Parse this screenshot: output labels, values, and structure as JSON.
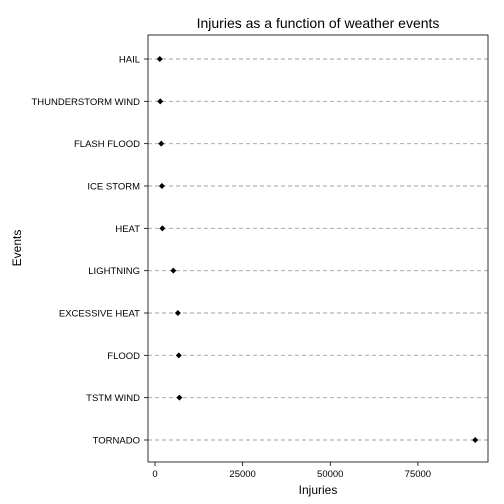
{
  "chart_data": {
    "type": "scatter",
    "title": "Injuries as a function of weather events",
    "xlabel": "Injuries",
    "ylabel": "Events",
    "xlim": [
      -2000,
      95000
    ],
    "x_ticks": [
      0,
      25000,
      50000,
      75000
    ],
    "x_tick_labels": [
      "0",
      "25000",
      "50000",
      "75000"
    ],
    "categories": [
      "HAIL",
      "THUNDERSTORM WIND",
      "FLASH FLOOD",
      "ICE STORM",
      "HEAT",
      "LIGHTNING",
      "EXCESSIVE HEAT",
      "FLOOD",
      "TSTM WIND",
      "TORNADO"
    ],
    "values": [
      1361,
      1488,
      1777,
      1975,
      2100,
      5230,
      6525,
      6789,
      6957,
      91346
    ],
    "grid": "horizontal dashed",
    "marker": "diamond",
    "colors": {
      "marker": "#000000",
      "grid": "#a0a0a0",
      "frame": "#000000"
    }
  }
}
